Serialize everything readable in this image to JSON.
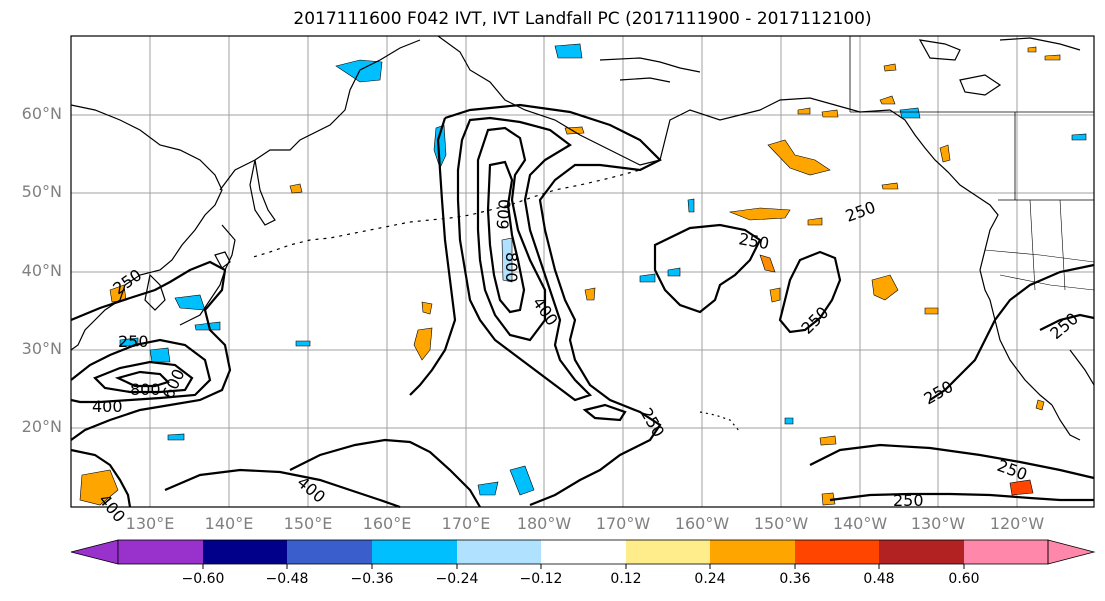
{
  "title": "2017111600 F042 IVT, IVT Landfall PC (2017111900 - 2017112100)",
  "lat_labels": [
    "60°N",
    "50°N",
    "40°N",
    "30°N",
    "20°N"
  ],
  "lon_labels": [
    "130°E",
    "140°E",
    "150°E",
    "160°E",
    "170°E",
    "180°W",
    "170°W",
    "160°W",
    "150°W",
    "140°W",
    "130°W",
    "120°W"
  ],
  "contour_labels": [
    {
      "text": "250",
      "name": "contour-label-250-west"
    },
    {
      "text": "250",
      "name": "contour-label-250-sw"
    },
    {
      "text": "800",
      "name": "contour-label-800-west"
    },
    {
      "text": "600",
      "name": "contour-label-600-west"
    },
    {
      "text": "400",
      "name": "contour-label-400-west"
    },
    {
      "text": "400",
      "name": "contour-label-400-sw"
    },
    {
      "text": "400",
      "name": "contour-label-400-south"
    },
    {
      "text": "600",
      "name": "contour-label-600-central"
    },
    {
      "text": "800",
      "name": "contour-label-800-central"
    },
    {
      "text": "400",
      "name": "contour-label-400-central"
    },
    {
      "text": "250",
      "name": "contour-label-250-central"
    },
    {
      "text": "250",
      "name": "contour-label-250-gulf"
    },
    {
      "text": "250",
      "name": "contour-label-250-alaska"
    },
    {
      "text": "250",
      "name": "contour-label-250-east"
    },
    {
      "text": "250",
      "name": "contour-label-250-se"
    },
    {
      "text": "250",
      "name": "contour-label-250-south-east"
    },
    {
      "text": "250",
      "name": "contour-label-250-bottom"
    },
    {
      "text": "250",
      "name": "contour-label-250-coast"
    }
  ],
  "colorbar": {
    "tick_labels": [
      "−0.60",
      "−0.48",
      "−0.36",
      "−0.24",
      "−0.12",
      "0.12",
      "0.24",
      "0.36",
      "0.48",
      "0.60"
    ],
    "colors": [
      "#9932cc",
      "#00008b",
      "#3a5fcd",
      "#00bfff",
      "#b0e2ff",
      "#ffffff",
      "#ffec8b",
      "#ffa500",
      "#ff4500",
      "#b22222",
      "#ff88aa"
    ]
  },
  "chart_data": {
    "type": "map",
    "title": "2017111600 F042 IVT, IVT Landfall PC (2017111900 - 2017112100)",
    "lon_range": [
      "120°E",
      "115°W"
    ],
    "lat_range": [
      "10°N",
      "70°N"
    ],
    "contour_levels": [
      250,
      400,
      600,
      800
    ],
    "colorbar_levels": [
      -0.6,
      -0.48,
      -0.36,
      -0.24,
      -0.12,
      0.12,
      0.24,
      0.36,
      0.48,
      0.6
    ],
    "grid": true
  }
}
